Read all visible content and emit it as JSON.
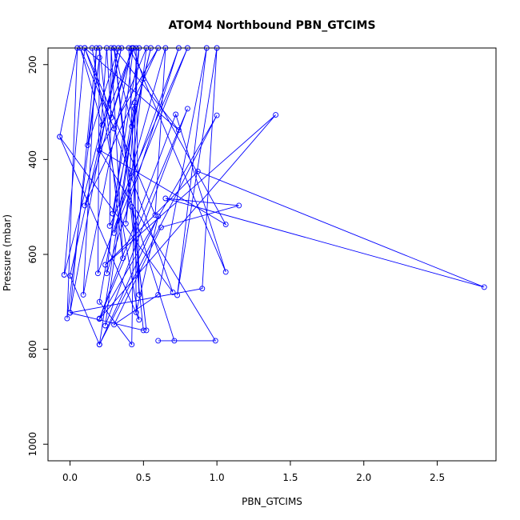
{
  "chart_data": {
    "type": "line",
    "title": "ATOM4 Northbound PBN_GTCIMS",
    "xlabel": "PBN_GTCIMS",
    "ylabel": "Pressure (mbar)",
    "xlim": [
      -0.15,
      2.9
    ],
    "ylim": [
      1035,
      165
    ],
    "y_reversed": true,
    "x_ticks": [
      0.0,
      0.5,
      1.0,
      1.5,
      2.0,
      2.5
    ],
    "x_tick_labels": [
      "0.0",
      "0.5",
      "1.0",
      "1.5",
      "2.0",
      "2.5"
    ],
    "y_ticks": [
      200,
      400,
      600,
      800,
      1000
    ],
    "y_tick_labels": [
      "200",
      "400",
      "600",
      "800",
      "1000"
    ],
    "grid": false,
    "series": [
      {
        "color": "#0000ff",
        "marker": "open-circle",
        "points": [
          [
            -0.07,
            352
          ],
          [
            0.05,
            165
          ],
          [
            -0.02,
            735
          ],
          [
            0.2,
            185
          ],
          [
            0.12,
            370
          ],
          [
            0.33,
            165
          ],
          [
            0.0,
            723
          ],
          [
            0.18,
            165
          ],
          [
            0.09,
            685
          ],
          [
            0.42,
            165
          ],
          [
            0.1,
            497
          ],
          [
            0.6,
            165
          ],
          [
            0.2,
            380
          ],
          [
            0.25,
            165
          ],
          [
            0.28,
            312
          ],
          [
            0.43,
            165
          ],
          [
            0.22,
            327
          ],
          [
            0.07,
            165
          ],
          [
            0.3,
            335
          ],
          [
            0.52,
            165
          ],
          [
            0.38,
            535
          ],
          [
            0.47,
            165
          ],
          [
            0.29,
            514
          ],
          [
            0.55,
            165
          ],
          [
            0.42,
            330
          ],
          [
            0.3,
            165
          ],
          [
            0.74,
            338
          ],
          [
            0.1,
            165
          ],
          [
            0.58,
            517
          ],
          [
            0.65,
            165
          ],
          [
            0.3,
            555
          ],
          [
            0.8,
            165
          ],
          [
            0.27,
            540
          ],
          [
            0.28,
            165
          ],
          [
            0.36,
            608
          ],
          [
            0.2,
            165
          ],
          [
            0.19,
            640
          ],
          [
            0.74,
            165
          ],
          [
            0.25,
            640
          ],
          [
            0.43,
            165
          ],
          [
            0.5,
            230
          ],
          [
            1.06,
            637
          ],
          [
            0.72,
            305
          ],
          [
            0.2,
            735
          ],
          [
            0.8,
            293
          ],
          [
            0.24,
            750
          ],
          [
            0.44,
            293
          ],
          [
            0.2,
            790
          ],
          [
            1.0,
            307
          ],
          [
            0.2,
            736
          ],
          [
            1.4,
            306
          ],
          [
            0.24,
            622
          ],
          [
            0.87,
            425
          ],
          [
            2.82,
            669
          ],
          [
            0.65,
            482
          ],
          [
            1.15,
            497
          ],
          [
            0.62,
            543
          ],
          [
            0.3,
            748
          ],
          [
            0.6,
            685
          ],
          [
            0.93,
            165
          ],
          [
            0.73,
            686
          ],
          [
            1.0,
            165
          ],
          [
            0.9,
            672
          ],
          [
            0.0,
            723
          ],
          [
            0.5,
            760
          ],
          [
            0.3,
            165
          ],
          [
            0.52,
            760
          ],
          [
            0.42,
            500
          ],
          [
            0.71,
            782
          ],
          [
            0.6,
            782
          ],
          [
            0.99,
            782
          ],
          [
            0.2,
            380
          ],
          [
            1.06,
            537
          ],
          [
            0.4,
            165
          ],
          [
            0.47,
            685
          ],
          [
            0.45,
            165
          ],
          [
            0.42,
            790
          ],
          [
            0.2,
            700
          ],
          [
            0.44,
            280
          ],
          [
            0.45,
            722
          ],
          [
            0.6,
            520
          ],
          [
            0.2,
            790
          ],
          [
            0.0,
            645
          ],
          [
            0.35,
            165
          ],
          [
            -0.04,
            643
          ],
          [
            0.1,
            165
          ],
          [
            0.7,
            680
          ],
          [
            -0.07,
            352
          ],
          [
            0.47,
            738
          ],
          [
            0.15,
            165
          ]
        ]
      }
    ]
  }
}
